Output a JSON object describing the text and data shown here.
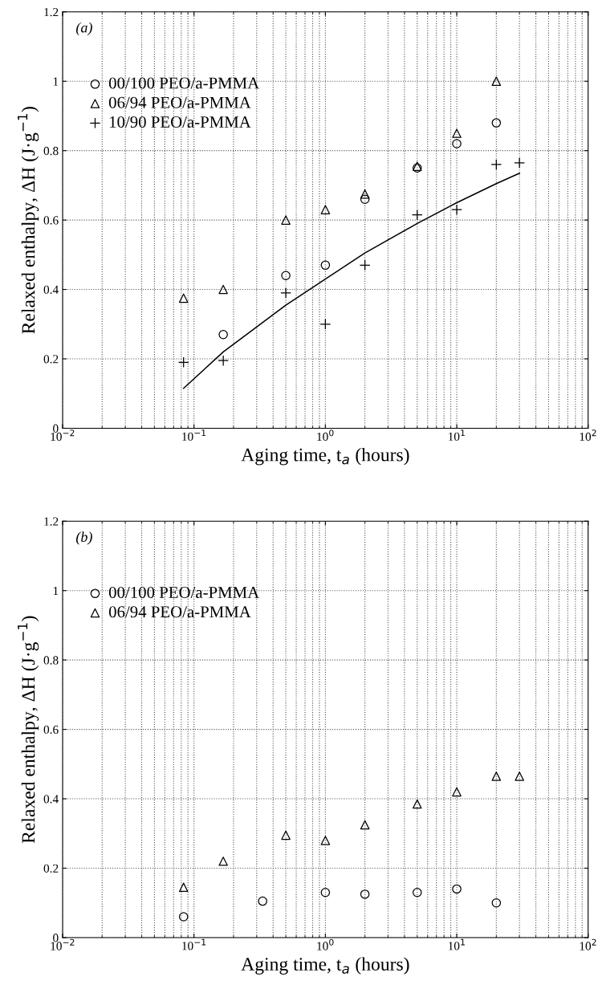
{
  "chart_data": [
    {
      "type": "scatter",
      "annotations": [
        "(a)"
      ],
      "xlabel": "Aging time, t$_{a}$ (hours)",
      "ylabel": "Relaxed enthalpy, ΔH (J·g$^{−1}$)",
      "log": "x",
      "xlim": [
        0.01,
        100
      ],
      "xticks": [
        {
          "value": 0.01,
          "label": "10$^{−2}$"
        },
        {
          "value": 0.1,
          "label": "10$^{−1}$"
        },
        {
          "value": 1,
          "label": "10$^{0}$"
        },
        {
          "value": 10,
          "label": "10$^{1}$"
        },
        {
          "value": 100,
          "label": "10$^{2}$"
        }
      ],
      "ylim": [
        0,
        1.2
      ],
      "yticks": [
        0,
        0.2,
        0.4,
        0.6,
        0.8,
        1,
        1.2
      ],
      "grid": true,
      "legend": "top left",
      "series": [
        {
          "name": "00/100 PEO/a-PMMA",
          "color": "#000000",
          "marker": "circle",
          "x": [
            0.167,
            0.5,
            1,
            2,
            5,
            10,
            20
          ],
          "values": [
            0.27,
            0.44,
            0.47,
            0.66,
            0.75,
            0.82,
            0.88
          ]
        },
        {
          "name": "06/94 PEO/a-PMMA",
          "color": "#000000",
          "marker": "triangle",
          "x": [
            0.0833,
            0.167,
            0.5,
            1,
            2,
            5,
            10,
            20
          ],
          "values": [
            0.375,
            0.4,
            0.6,
            0.63,
            0.675,
            0.755,
            0.85,
            1.0
          ]
        },
        {
          "name": "10/90 PEO/a-PMMA",
          "color": "#000000",
          "marker": "cross",
          "x": [
            0.0833,
            0.167,
            0.5,
            1,
            2,
            5,
            10,
            20,
            30
          ],
          "values": [
            0.19,
            0.195,
            0.39,
            0.3,
            0.47,
            0.615,
            0.63,
            0.76,
            0.765
          ]
        },
        {
          "type": "line",
          "color": "#000000",
          "line_style": "solid",
          "x": [
            0.0833,
            0.167,
            0.5,
            1,
            2,
            5,
            10,
            20,
            30
          ],
          "values": [
            0.115,
            0.22,
            0.355,
            0.43,
            0.505,
            0.59,
            0.65,
            0.705,
            0.735
          ]
        }
      ]
    },
    {
      "type": "scatter",
      "annotations": [
        "(b)"
      ],
      "xlabel": "Aging time, t$_{a}$ (hours)",
      "ylabel": "Relaxed enthalpy, ΔH (J·g$^{−1}$)",
      "log": "x",
      "xlim": [
        0.01,
        100
      ],
      "xticks": [
        {
          "value": 0.01,
          "label": "10$^{−2}$"
        },
        {
          "value": 0.1,
          "label": "10$^{−1}$"
        },
        {
          "value": 1,
          "label": "10$^{0}$"
        },
        {
          "value": 10,
          "label": "10$^{1}$"
        },
        {
          "value": 100,
          "label": "10$^{2}$"
        }
      ],
      "ylim": [
        0,
        1.2
      ],
      "yticks": [
        0,
        0.2,
        0.4,
        0.6,
        0.8,
        1,
        1.2
      ],
      "grid": true,
      "legend": "top left",
      "series": [
        {
          "name": "00/100 PEO/a-PMMA",
          "color": "#000000",
          "marker": "circle",
          "x": [
            0.0833,
            0.333,
            1,
            2,
            5,
            10,
            20
          ],
          "values": [
            0.06,
            0.105,
            0.13,
            0.125,
            0.13,
            0.14,
            0.1
          ]
        },
        {
          "name": "06/94 PEO/a-PMMA",
          "color": "#000000",
          "marker": "triangle",
          "x": [
            0.0833,
            0.167,
            0.5,
            1,
            2,
            5,
            10,
            20,
            30
          ],
          "values": [
            0.145,
            0.22,
            0.295,
            0.28,
            0.325,
            0.385,
            0.42,
            0.465,
            0.465
          ]
        }
      ]
    }
  ]
}
